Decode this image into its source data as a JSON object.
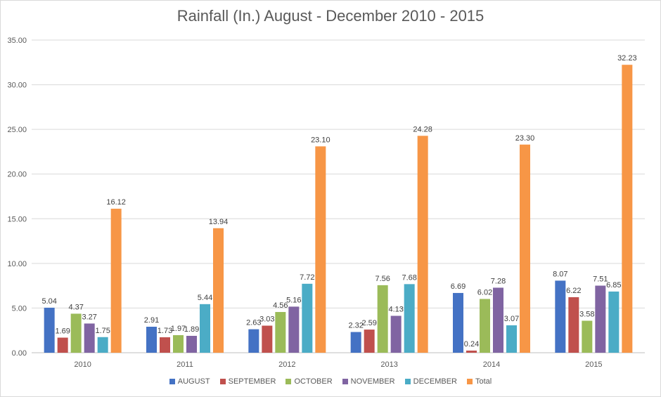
{
  "chart_data": {
    "type": "bar",
    "title": "Rainfall (In.) August - December 2010 - 2015",
    "xlabel": "",
    "ylabel": "",
    "categories": [
      "2010",
      "2011",
      "2012",
      "2013",
      "2014",
      "2015"
    ],
    "ylim": [
      0,
      35
    ],
    "yticks": [
      "0.00",
      "5.00",
      "10.00",
      "15.00",
      "20.00",
      "25.00",
      "30.00",
      "35.00"
    ],
    "grid": true,
    "legend_position": "bottom",
    "series": [
      {
        "name": "AUGUST",
        "color": "#4472c4",
        "values": [
          5.04,
          2.91,
          2.63,
          2.32,
          6.69,
          8.07
        ],
        "labels": [
          "5.04",
          "2.91",
          "2.63",
          "2.32",
          "6.69",
          "8.07"
        ]
      },
      {
        "name": "SEPTEMBER",
        "color": "#c0504d",
        "values": [
          1.69,
          1.73,
          3.03,
          2.59,
          0.24,
          6.22
        ],
        "labels": [
          "1.69",
          "1.73",
          "3.03",
          "2.59",
          "0.24",
          "6.22"
        ]
      },
      {
        "name": "OCTOBER",
        "color": "#9bbb59",
        "values": [
          4.37,
          1.97,
          4.56,
          7.56,
          6.02,
          3.58
        ],
        "labels": [
          "4.37",
          "1.97",
          "4.56",
          "7.56",
          "6.02",
          "3.58"
        ]
      },
      {
        "name": "NOVEMBER",
        "color": "#8064a2",
        "values": [
          3.27,
          1.89,
          5.16,
          4.13,
          7.28,
          7.51
        ],
        "labels": [
          "3.27",
          "1.89",
          "5.16",
          "4.13",
          "7.28",
          "7.51"
        ]
      },
      {
        "name": "DECEMBER",
        "color": "#4bacc6",
        "values": [
          1.75,
          5.44,
          7.72,
          7.68,
          3.07,
          6.85
        ],
        "labels": [
          "1.75",
          "5.44",
          "7.72",
          "7.68",
          "3.07",
          "6.85"
        ]
      },
      {
        "name": "Total",
        "color": "#f79646",
        "values": [
          16.12,
          13.94,
          23.1,
          24.28,
          23.3,
          32.23
        ],
        "labels": [
          "16.12",
          "13.94",
          "23.10",
          "24.28",
          "23.30",
          "32.23"
        ]
      }
    ]
  }
}
